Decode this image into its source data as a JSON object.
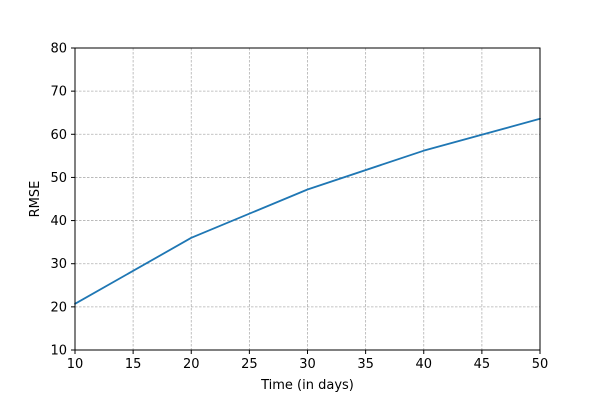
{
  "chart_data": {
    "type": "line",
    "title": "",
    "xlabel": "Time (in days)",
    "ylabel": "RMSE",
    "xlim": [
      10,
      50
    ],
    "ylim": [
      10,
      80
    ],
    "xticks": [
      "10",
      "15",
      "20",
      "25",
      "30",
      "35",
      "40",
      "45",
      "50"
    ],
    "yticks": [
      "10",
      "20",
      "30",
      "40",
      "50",
      "60",
      "70",
      "80"
    ],
    "grid": true,
    "legend": "none",
    "x": [
      10,
      20,
      30,
      40,
      50
    ],
    "series": [
      {
        "values": [
          20.7,
          36.0,
          47.2,
          56.2,
          63.6
        ],
        "color": "#1f77b4"
      }
    ]
  }
}
